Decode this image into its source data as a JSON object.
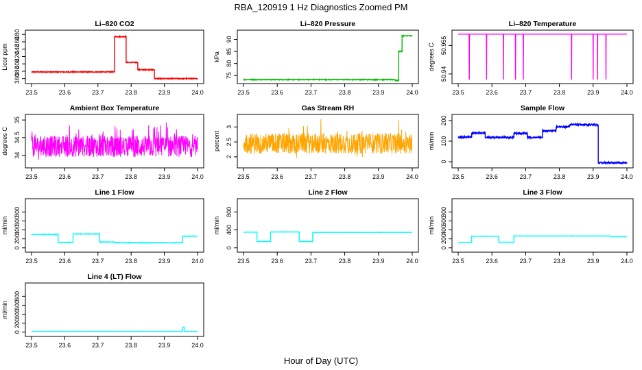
{
  "figure": {
    "title": "RBA_120919  1 Hz Diagnostics Zoomed PM",
    "xlabel": "Hour of Day (UTC)"
  },
  "chart_data": [
    {
      "id": "co2",
      "type": "line",
      "title": "Li–820 CO2",
      "ylabel": "Licor ppm",
      "color": "#ff0000",
      "xlim": [
        23.5,
        24.0
      ],
      "ylim": [
        352,
        486
      ],
      "yticks": [
        360,
        380,
        400,
        420,
        440,
        460,
        480
      ],
      "xticks": [
        23.5,
        23.6,
        23.7,
        23.8,
        23.9,
        24.0
      ],
      "segments": [
        [
          23.5,
          23.75,
          378
        ],
        [
          23.75,
          23.785,
          474
        ],
        [
          23.785,
          23.82,
          404
        ],
        [
          23.82,
          23.87,
          384
        ],
        [
          23.87,
          24.0,
          360
        ]
      ],
      "noise": 1.2
    },
    {
      "id": "pressure",
      "type": "line",
      "title": "Li–820 Pressure",
      "ylabel": "kPa",
      "color": "#00c000",
      "xlim": [
        23.5,
        24.0
      ],
      "ylim": [
        72.5,
        93
      ],
      "yticks": [
        75,
        80,
        85,
        90
      ],
      "xticks": [
        23.5,
        23.6,
        23.7,
        23.8,
        23.9,
        24.0
      ],
      "segments": [
        [
          23.5,
          23.95,
          73.3
        ],
        [
          23.95,
          23.96,
          72.9
        ],
        [
          23.96,
          23.97,
          85
        ],
        [
          23.97,
          24.0,
          91.5
        ]
      ],
      "noise": 0.15
    },
    {
      "id": "temp820",
      "type": "line",
      "title": "Li–820 Temperature",
      "ylabel": "degrees C",
      "color": "#ff00ff",
      "xlim": [
        23.5,
        24.0
      ],
      "ylim": [
        50.936,
        50.962
      ],
      "yticks": [
        50.94,
        50.955
      ],
      "xticks": [
        23.5,
        23.6,
        23.7,
        23.8,
        23.9,
        24.0
      ],
      "baseline": 50.961,
      "dip": 50.937,
      "dips": [
        23.533,
        23.584,
        23.634,
        23.67,
        23.693,
        23.836,
        23.9,
        23.913,
        23.938
      ]
    },
    {
      "id": "ambient",
      "type": "line",
      "title": "Ambient Box Temperature",
      "ylabel": "degrees C",
      "color": "#ff00ff",
      "xlim": [
        23.5,
        24.0
      ],
      "ylim": [
        33.7,
        35.1
      ],
      "yticks": [
        34.0,
        34.5,
        35.0
      ],
      "xticks": [
        23.5,
        23.6,
        23.7,
        23.8,
        23.9,
        24.0
      ],
      "mean": 34.25,
      "noise": 0.3
    },
    {
      "id": "rh",
      "type": "line",
      "title": "Gas Stream RH",
      "ylabel": "percent",
      "color": "#ffa500",
      "xlim": [
        23.5,
        24.0
      ],
      "ylim": [
        1.7,
        3.35
      ],
      "yticks": [
        2.0,
        2.5,
        3.0
      ],
      "xticks": [
        23.5,
        23.6,
        23.7,
        23.8,
        23.9,
        24.0
      ],
      "mean": 2.45,
      "noise": 0.35
    },
    {
      "id": "sample",
      "type": "line",
      "title": "Sample Flow",
      "ylabel": "ml/min",
      "color": "#0000ff",
      "xlim": [
        23.5,
        24.0
      ],
      "ylim": [
        -20,
        220
      ],
      "yticks": [
        0,
        100,
        200
      ],
      "xticks": [
        23.5,
        23.6,
        23.7,
        23.8,
        23.9,
        24.0
      ],
      "segments": [
        [
          23.5,
          23.54,
          120
        ],
        [
          23.54,
          23.58,
          140
        ],
        [
          23.58,
          23.665,
          118
        ],
        [
          23.665,
          23.705,
          138
        ],
        [
          23.705,
          23.75,
          118
        ],
        [
          23.75,
          23.79,
          150
        ],
        [
          23.79,
          23.83,
          170
        ],
        [
          23.83,
          23.915,
          180
        ],
        [
          23.915,
          24.0,
          -5
        ]
      ],
      "noise": 4
    },
    {
      "id": "line1",
      "type": "line",
      "title": "Line 1 Flow",
      "ylabel": "ml/min",
      "color": "#00ffff",
      "xlim": [
        23.5,
        24.0
      ],
      "ylim": [
        -50,
        1050
      ],
      "yticks": [
        0,
        200,
        400,
        600,
        800
      ],
      "xticks": [
        23.5,
        23.6,
        23.7,
        23.8,
        23.9,
        24.0
      ],
      "segments": [
        [
          23.5,
          23.58,
          300
        ],
        [
          23.58,
          23.625,
          120
        ],
        [
          23.625,
          23.705,
          310
        ],
        [
          23.705,
          23.75,
          130
        ],
        [
          23.75,
          23.955,
          115
        ],
        [
          23.955,
          24.0,
          260
        ]
      ],
      "noise": 6
    },
    {
      "id": "line2",
      "type": "line",
      "title": "Line 2 Flow",
      "ylabel": "ml/min",
      "color": "#00ffff",
      "xlim": [
        23.5,
        24.0
      ],
      "ylim": [
        -50,
        1050
      ],
      "yticks": [
        0,
        400,
        800
      ],
      "xticks": [
        23.5,
        23.6,
        23.7,
        23.8,
        23.9,
        24.0
      ],
      "segments": [
        [
          23.5,
          23.54,
          350
        ],
        [
          23.54,
          23.58,
          140
        ],
        [
          23.58,
          23.665,
          355
        ],
        [
          23.665,
          23.705,
          140
        ],
        [
          23.705,
          24.0,
          345
        ]
      ],
      "noise": 3
    },
    {
      "id": "line3",
      "type": "line",
      "title": "Line 3 Flow",
      "ylabel": "ml/min",
      "color": "#00ffff",
      "xlim": [
        23.5,
        24.0
      ],
      "ylim": [
        -50,
        1050
      ],
      "yticks": [
        0,
        200,
        400,
        600,
        800
      ],
      "xticks": [
        23.5,
        23.6,
        23.7,
        23.8,
        23.9,
        24.0
      ],
      "segments": [
        [
          23.5,
          23.54,
          120
        ],
        [
          23.54,
          23.62,
          260
        ],
        [
          23.62,
          23.665,
          125
        ],
        [
          23.665,
          23.95,
          265
        ],
        [
          23.95,
          24.0,
          250
        ]
      ],
      "noise": 3
    },
    {
      "id": "line4",
      "type": "line",
      "title": "Line 4 (LT) Flow",
      "ylabel": "ml/min",
      "color": "#00ffff",
      "xlim": [
        23.5,
        24.0
      ],
      "ylim": [
        -50,
        1050
      ],
      "yticks": [
        0,
        200,
        400,
        600,
        800
      ],
      "xticks": [
        23.5,
        23.6,
        23.7,
        23.8,
        23.9,
        24.0
      ],
      "segments": [
        [
          23.5,
          23.955,
          15
        ],
        [
          23.955,
          23.96,
          110
        ],
        [
          23.96,
          24.0,
          15
        ]
      ],
      "noise": 2
    }
  ]
}
